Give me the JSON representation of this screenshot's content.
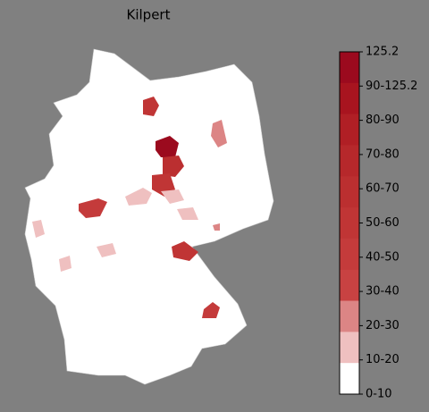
{
  "title": "Kilpert",
  "legend": {
    "labels": [
      "125.2",
      "90-125.2",
      "80-90",
      "70-80",
      "60-70",
      "50-60",
      "40-50",
      "30-40",
      "20-30",
      "10-20",
      "0-10"
    ],
    "colors": [
      "#9b0a1e",
      "#a8141f",
      "#b01f25",
      "#b6282b",
      "#bb2f30",
      "#c03535",
      "#c43b3b",
      "#c84242",
      "#dc8585",
      "#efc0c0",
      "#ffffff"
    ]
  }
}
